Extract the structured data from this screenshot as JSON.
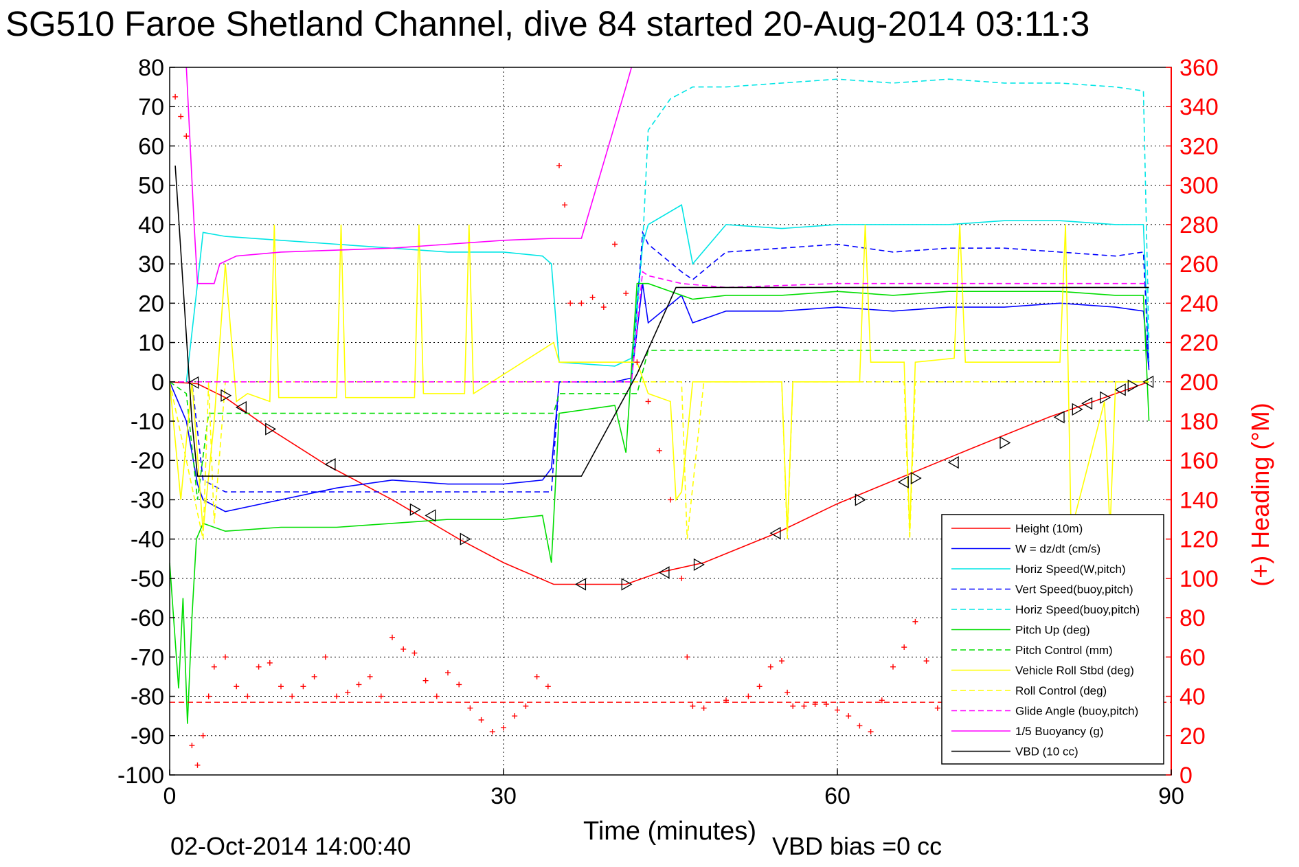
{
  "chart_data": {
    "type": "line",
    "title": "SG510 Faroe Shetland Channel, dive 84 started 20-Aug-2014 03:11:3",
    "xlabel": "Time (minutes)",
    "ylabel_right": "(+) Heading (°M)",
    "footer_date": "02-Oct-2014 14:00:40",
    "footer_vbd": "VBD bias =0 cc",
    "xlim": [
      0,
      90
    ],
    "ylim_left": [
      -100,
      80
    ],
    "ylim_right": [
      0,
      360
    ],
    "x_ticks": [
      "0",
      "30",
      "60",
      "90"
    ],
    "y_left_ticks": [
      "80",
      "70",
      "60",
      "50",
      "40",
      "30",
      "20",
      "10",
      "0",
      "-10",
      "-20",
      "-30",
      "-40",
      "-50",
      "-60",
      "-70",
      "-80",
      "-90",
      "-100"
    ],
    "y_right_ticks": [
      "360",
      "340",
      "320",
      "300",
      "280",
      "260",
      "240",
      "220",
      "200",
      "180",
      "160",
      "140",
      "120",
      "100",
      "80",
      "60",
      "40",
      "20",
      "0"
    ],
    "grid": true,
    "legend_position": "bottom-right",
    "colors": {
      "height": "#ff0000",
      "w": "#0000ff",
      "horiz_w": "#00e5e5",
      "vert_buoy": "#0000ff",
      "horiz_buoy": "#00e5e5",
      "pitch": "#00dd00",
      "pitch_control": "#00dd00",
      "roll": "#ffff00",
      "roll_control": "#ffff00",
      "glide": "#ff00ff",
      "buoyancy": "#ff00ff",
      "vbd": "#000000",
      "heading": "#ff0000",
      "right_axis": "#ff0000"
    },
    "series": [
      {
        "key": "height",
        "name": "Height (10m)",
        "dash": false,
        "x": [
          0,
          1.5,
          2.5,
          5,
          9,
          14,
          20,
          26,
          30,
          34.5,
          37,
          41,
          44,
          48,
          54.5,
          60,
          66,
          72,
          79,
          84,
          88
        ],
        "y": [
          0,
          -0.3,
          -0.5,
          -4,
          -12,
          -21,
          -30,
          -40,
          -46,
          -51.5,
          -51.5,
          -51.5,
          -48.5,
          -46,
          -38.5,
          -31,
          -24,
          -17,
          -9,
          -4,
          0
        ]
      },
      {
        "key": "w",
        "name": "W = dz/dt (cm/s)",
        "dash": false,
        "x": [
          0,
          1.5,
          2.5,
          3,
          5,
          10,
          15,
          20,
          25,
          30,
          33.5,
          34.3,
          35,
          40,
          41.5,
          42.5,
          43,
          46,
          47,
          50,
          55,
          60,
          65,
          70,
          75,
          80,
          85,
          87.5,
          88
        ],
        "y": [
          0,
          -10,
          -26,
          -30,
          -33,
          -30,
          -27,
          -25,
          -26,
          -26,
          -25,
          -22,
          0,
          0,
          1,
          25,
          15,
          22,
          15,
          18,
          18,
          19,
          18,
          19,
          19,
          20,
          19,
          18,
          3
        ]
      },
      {
        "key": "horiz_w",
        "name": "Horiz Speed(W,pitch)",
        "dash": false,
        "x": [
          1.5,
          2.5,
          3,
          5,
          10,
          15,
          20,
          25,
          30,
          33.5,
          34.3,
          35,
          40,
          41.5,
          42.5,
          43,
          46,
          47,
          50,
          55,
          60,
          65,
          70,
          75,
          80,
          85,
          87.5,
          88
        ],
        "y": [
          0,
          25,
          38,
          37,
          36,
          35,
          34,
          33,
          33,
          32,
          30,
          5,
          4,
          6,
          35,
          40,
          45,
          30,
          40,
          39,
          40,
          40,
          40,
          41,
          41,
          40,
          40,
          5
        ]
      },
      {
        "key": "vert_buoy",
        "name": "Vert Speed(buoy,pitch)",
        "dash": true,
        "x": [
          0,
          2,
          3,
          5,
          34.3,
          35,
          41.5,
          42.5,
          43,
          46,
          47,
          50,
          55,
          60,
          65,
          70,
          75,
          80,
          85,
          87.5,
          88
        ],
        "y": [
          0,
          0,
          -25,
          -28,
          -28,
          0,
          0,
          38,
          35,
          28,
          26,
          33,
          34,
          35,
          33,
          34,
          34,
          33,
          32,
          33,
          3
        ]
      },
      {
        "key": "horiz_buoy",
        "name": "Horiz Speed(buoy,pitch)",
        "dash": true,
        "x": [
          41.5,
          42.5,
          43,
          45,
          47,
          50,
          55,
          60,
          65,
          70,
          75,
          80,
          85,
          87.5,
          88
        ],
        "y": [
          0,
          35,
          64,
          72,
          75,
          75,
          76,
          77,
          76,
          77,
          76,
          76,
          75,
          74,
          10
        ]
      },
      {
        "key": "pitch",
        "name": "Pitch Up (deg)",
        "dash": false,
        "x": [
          0,
          0.8,
          1.2,
          1.6,
          2,
          2.4,
          3,
          5,
          10,
          15,
          20,
          25,
          30,
          33.5,
          34.3,
          35,
          40,
          41,
          42,
          43,
          46,
          47,
          50,
          55,
          60,
          65,
          70,
          75,
          80,
          85,
          87.5,
          88
        ],
        "y": [
          -46,
          -78,
          -55,
          -87,
          -60,
          -40,
          -36,
          -38,
          -37,
          -37,
          -36,
          -35,
          -35,
          -34,
          -46,
          -8,
          -6,
          -18,
          25,
          25,
          22,
          21,
          22,
          22,
          23,
          22,
          23,
          23,
          23,
          22,
          22,
          -10
        ]
      },
      {
        "key": "pitch_control",
        "name": "Pitch Control (mm)",
        "dash": true,
        "x": [
          0,
          1.5,
          2.5,
          3.5,
          34.5,
          35,
          42,
          43,
          88
        ],
        "y": [
          0,
          -3,
          -30,
          -8,
          -8,
          -3,
          -3,
          8,
          8
        ]
      },
      {
        "key": "roll",
        "name": "Vehicle Roll Stbd (deg)",
        "dash": false,
        "x": [
          0,
          1,
          2,
          3,
          4,
          5,
          6,
          7,
          9,
          9.4,
          9.8,
          15,
          15.4,
          15.8,
          22,
          22.4,
          22.8,
          26.5,
          26.9,
          27.3,
          34.5,
          35,
          42,
          43,
          45,
          45.5,
          46,
          47,
          48,
          55,
          55.5,
          56,
          62,
          62.5,
          63,
          66,
          66.5,
          67,
          70.5,
          71,
          71.5,
          80,
          80.5,
          81,
          84,
          84.5,
          85,
          88
        ],
        "y": [
          0,
          -30,
          0,
          -38,
          -10,
          30,
          -5,
          -3,
          -5,
          40,
          -4,
          -4,
          40,
          -4,
          -4,
          40,
          -3,
          -3,
          40,
          -3,
          10,
          5,
          5,
          -3,
          -5,
          -30,
          -28,
          0,
          0,
          0,
          -38,
          0,
          0,
          40,
          5,
          5,
          -38,
          5,
          6,
          40,
          5,
          5,
          40,
          -38,
          -5,
          -38,
          0,
          0
        ]
      },
      {
        "key": "roll_control",
        "name": "Roll Control (deg)",
        "dash": true,
        "x": [
          0,
          3,
          3.5,
          4,
          5,
          46,
          46.5,
          48,
          55,
          55.5,
          56,
          66,
          66.5,
          67,
          88
        ],
        "y": [
          0,
          -40,
          0,
          -36,
          0,
          0,
          -40,
          0,
          0,
          -40,
          0,
          0,
          -40,
          0,
          0
        ]
      },
      {
        "key": "glide",
        "name": "Glide Angle (buoy,pitch)",
        "dash": true,
        "x": [
          0,
          41.5,
          42.5,
          43,
          46,
          50,
          60,
          70,
          80,
          88
        ],
        "y": [
          0,
          0,
          28,
          27,
          25,
          24,
          25,
          25,
          25,
          25
        ]
      },
      {
        "key": "buoyancy",
        "name": "1/5 Buoyancy (g)",
        "dash": false,
        "x": [
          1.5,
          2.2,
          2.5,
          4,
          4.5,
          6,
          10,
          15,
          20,
          25,
          30,
          34.5,
          37,
          41,
          41.5
        ],
        "y": [
          80,
          40,
          25,
          25,
          30,
          32,
          33,
          33.5,
          34,
          35,
          36,
          36.5,
          36.5,
          75,
          80
        ]
      },
      {
        "key": "vbd",
        "name": "VBD (10 cc)",
        "dash": false,
        "x": [
          0.5,
          2,
          2.5,
          3,
          37,
          42,
          45.5,
          88
        ],
        "y": [
          55,
          -10,
          -24,
          -24,
          -24,
          2,
          24,
          24
        ]
      }
    ],
    "heading_series": {
      "key": "heading",
      "x": [
        0.5,
        1,
        1.5,
        2,
        2.5,
        3,
        3.5,
        4,
        5,
        6,
        7,
        8,
        9,
        10,
        11,
        12,
        13,
        14,
        15,
        16,
        17,
        18,
        19,
        20,
        21,
        22,
        23,
        24,
        25,
        26,
        27,
        28,
        29,
        30,
        31,
        32,
        33,
        34,
        35,
        35.5,
        36,
        37,
        38,
        39,
        40,
        41,
        42,
        43,
        44,
        45,
        46,
        46.5,
        47,
        48,
        50,
        52,
        53,
        54,
        55,
        55.5,
        56,
        57,
        58,
        59,
        60,
        61,
        62,
        63,
        64,
        65,
        66,
        67,
        68,
        69,
        70,
        71,
        72,
        73,
        74,
        75,
        76,
        77,
        78,
        79,
        80,
        81,
        82,
        83,
        84,
        85,
        86,
        87
      ],
      "y": [
        345,
        335,
        325,
        15,
        5,
        20,
        40,
        55,
        60,
        45,
        40,
        55,
        57,
        45,
        40,
        45,
        50,
        60,
        40,
        42,
        46,
        50,
        40,
        70,
        64,
        62,
        48,
        40,
        52,
        46,
        34,
        28,
        22,
        24,
        30,
        35,
        50,
        45,
        310,
        290,
        240,
        240,
        243,
        238,
        270,
        245,
        210,
        190,
        165,
        140,
        100,
        60,
        35,
        34,
        38,
        40,
        45,
        55,
        58,
        42,
        35,
        35,
        36,
        36,
        33,
        30,
        25,
        22,
        38,
        55,
        65,
        78,
        58,
        34,
        30,
        28,
        26,
        24,
        22,
        20,
        21,
        25,
        28,
        30,
        32,
        30,
        26,
        22,
        20,
        22,
        25,
        28
      ]
    },
    "heading_reference": 37,
    "legend": [
      {
        "key": "height",
        "label": "Height (10m)"
      },
      {
        "key": "w",
        "label": "W = dz/dt (cm/s)"
      },
      {
        "key": "horiz_w",
        "label": "Horiz Speed(W,pitch)"
      },
      {
        "key": "vert_buoy",
        "label": "Vert Speed(buoy,pitch)"
      },
      {
        "key": "horiz_buoy",
        "label": "Horiz Speed(buoy,pitch)"
      },
      {
        "key": "pitch",
        "label": "Pitch Up (deg)"
      },
      {
        "key": "pitch_control",
        "label": "Pitch Control (mm)"
      },
      {
        "key": "roll",
        "label": "Vehicle Roll Stbd (deg)"
      },
      {
        "key": "roll_control",
        "label": "Roll Control (deg)"
      },
      {
        "key": "glide",
        "label": "Glide Angle (buoy,pitch)"
      },
      {
        "key": "buoyancy",
        "label": "1/5 Buoyancy (g)"
      },
      {
        "key": "vbd",
        "label": "VBD (10 cc)"
      }
    ],
    "markers": {
      "x": [
        2.2,
        5,
        6.5,
        9,
        14.5,
        22,
        23.5,
        26.5,
        37,
        41,
        44.5,
        47.5,
        54.5,
        62,
        66,
        67,
        70.5,
        75,
        80,
        81.5,
        82.5,
        84,
        85.5,
        86.5,
        88
      ],
      "y": [
        -0.2,
        -3.5,
        -6.5,
        -12,
        -21,
        -32.5,
        -34,
        -40,
        -51.5,
        -51.5,
        -48.5,
        -46.5,
        -38.5,
        -30,
        -25.5,
        -24.5,
        -20.5,
        -15.5,
        -9,
        -7,
        -5.5,
        -4,
        -2,
        -1,
        0
      ]
    }
  }
}
